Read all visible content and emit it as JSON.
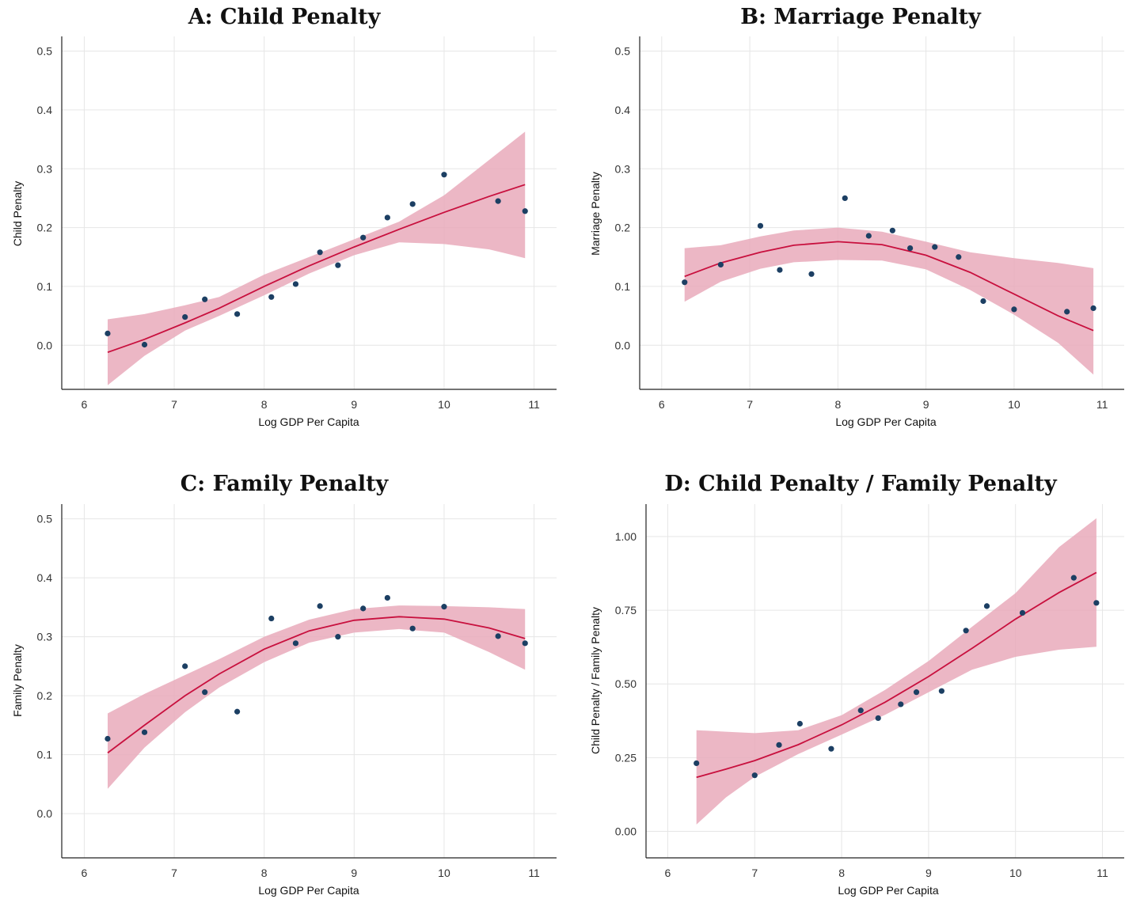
{
  "theme": {
    "ribbon_color": "#e8a7b8",
    "fit_color": "#c8103e",
    "point_color": "#1c3f63",
    "grid_color": "#e6e6e6"
  },
  "chart_data": [
    {
      "type": "scatter",
      "panel": "A",
      "title": "A: Child Penalty",
      "xlabel": "Log GDP Per Capita",
      "ylabel": "Child Penalty",
      "xlim": [
        5.75,
        11.25
      ],
      "ylim": [
        -0.075,
        0.525
      ],
      "xticks": [
        6,
        7,
        8,
        9,
        10,
        11
      ],
      "yticks": [
        0.0,
        0.1,
        0.2,
        0.3,
        0.4,
        0.5
      ],
      "ytick_labels": [
        "0.0",
        "0.1",
        "0.2",
        "0.3",
        "0.4",
        "0.5"
      ],
      "points": {
        "x": [
          6.26,
          6.67,
          7.12,
          7.34,
          7.7,
          8.08,
          8.35,
          8.62,
          8.82,
          9.1,
          9.37,
          9.65,
          10.0,
          10.6,
          10.9
        ],
        "y": [
          0.02,
          0.001,
          0.048,
          0.078,
          0.053,
          0.082,
          0.104,
          0.158,
          0.136,
          0.183,
          0.217,
          0.24,
          0.29,
          0.245,
          0.228
        ]
      },
      "fit": {
        "x": [
          6.26,
          6.67,
          7.12,
          7.5,
          8.0,
          8.5,
          9.0,
          9.5,
          10.0,
          10.5,
          10.9
        ],
        "y": [
          -0.012,
          0.01,
          0.038,
          0.063,
          0.1,
          0.135,
          0.167,
          0.197,
          0.226,
          0.253,
          0.273
        ],
        "lower": [
          -0.068,
          -0.018,
          0.025,
          0.05,
          0.085,
          0.122,
          0.153,
          0.175,
          0.172,
          0.163,
          0.148
        ],
        "upper": [
          0.044,
          0.053,
          0.068,
          0.082,
          0.12,
          0.15,
          0.18,
          0.21,
          0.255,
          0.315,
          0.363
        ]
      }
    },
    {
      "type": "scatter",
      "panel": "B",
      "title": "B: Marriage Penalty",
      "xlabel": "Log GDP Per Capita",
      "ylabel": "Marriage Penalty",
      "xlim": [
        5.75,
        11.25
      ],
      "ylim": [
        -0.075,
        0.525
      ],
      "xticks": [
        6,
        7,
        8,
        9,
        10,
        11
      ],
      "yticks": [
        0.0,
        0.1,
        0.2,
        0.3,
        0.4,
        0.5
      ],
      "ytick_labels": [
        "0.0",
        "0.1",
        "0.2",
        "0.3",
        "0.4",
        "0.5"
      ],
      "points": {
        "x": [
          6.26,
          6.67,
          7.12,
          7.34,
          7.7,
          8.08,
          8.35,
          8.62,
          8.82,
          9.1,
          9.37,
          9.65,
          10.0,
          10.6,
          10.9
        ],
        "y": [
          0.107,
          0.137,
          0.203,
          0.128,
          0.121,
          0.25,
          0.186,
          0.195,
          0.165,
          0.167,
          0.15,
          0.075,
          0.061,
          0.057,
          0.063
        ]
      },
      "fit": {
        "x": [
          6.26,
          6.67,
          7.12,
          7.5,
          8.0,
          8.5,
          9.0,
          9.5,
          10.0,
          10.5,
          10.9
        ],
        "y": [
          0.117,
          0.14,
          0.158,
          0.17,
          0.176,
          0.171,
          0.153,
          0.124,
          0.087,
          0.05,
          0.025
        ],
        "lower": [
          0.074,
          0.108,
          0.13,
          0.141,
          0.145,
          0.144,
          0.129,
          0.094,
          0.052,
          0.004,
          -0.05
        ],
        "upper": [
          0.165,
          0.17,
          0.185,
          0.195,
          0.2,
          0.193,
          0.176,
          0.158,
          0.148,
          0.14,
          0.131
        ]
      }
    },
    {
      "type": "scatter",
      "panel": "C",
      "title": "C: Family Penalty",
      "xlabel": "Log GDP Per Capita",
      "ylabel": "Family Penalty",
      "xlim": [
        5.75,
        11.25
      ],
      "ylim": [
        -0.075,
        0.525
      ],
      "xticks": [
        6,
        7,
        8,
        9,
        10,
        11
      ],
      "yticks": [
        0.0,
        0.1,
        0.2,
        0.3,
        0.4,
        0.5
      ],
      "ytick_labels": [
        "0.0",
        "0.1",
        "0.2",
        "0.3",
        "0.4",
        "0.5"
      ],
      "points": {
        "x": [
          6.26,
          6.67,
          7.12,
          7.34,
          7.7,
          8.08,
          8.35,
          8.62,
          8.82,
          9.1,
          9.37,
          9.65,
          10.0,
          10.6,
          10.9
        ],
        "y": [
          0.127,
          0.138,
          0.25,
          0.206,
          0.173,
          0.331,
          0.289,
          0.352,
          0.3,
          0.348,
          0.366,
          0.314,
          0.351,
          0.301,
          0.289
        ]
      },
      "fit": {
        "x": [
          6.26,
          6.67,
          7.12,
          7.5,
          8.0,
          8.5,
          9.0,
          9.5,
          10.0,
          10.5,
          10.9
        ],
        "y": [
          0.103,
          0.15,
          0.2,
          0.237,
          0.279,
          0.31,
          0.328,
          0.334,
          0.33,
          0.315,
          0.297
        ],
        "lower": [
          0.042,
          0.112,
          0.172,
          0.214,
          0.257,
          0.29,
          0.307,
          0.313,
          0.307,
          0.274,
          0.244
        ],
        "upper": [
          0.17,
          0.203,
          0.235,
          0.262,
          0.3,
          0.329,
          0.347,
          0.353,
          0.352,
          0.35,
          0.347
        ]
      }
    },
    {
      "type": "scatter",
      "panel": "D",
      "title": "D: Child Penalty / Family Penalty",
      "xlabel": "Log GDP Per Capita",
      "ylabel": "Child Penalty / Family Penalty",
      "xlim": [
        5.75,
        11.25
      ],
      "ylim": [
        -0.09,
        1.11
      ],
      "xticks": [
        6,
        7,
        8,
        9,
        10,
        11
      ],
      "yticks": [
        0.0,
        0.25,
        0.5,
        0.75,
        1.0
      ],
      "ytick_labels": [
        "0.00",
        "0.25",
        "0.50",
        "0.75",
        "1.00"
      ],
      "points": {
        "x": [
          6.33,
          7.0,
          7.28,
          7.52,
          7.88,
          8.22,
          8.42,
          8.68,
          8.86,
          9.15,
          9.43,
          9.67,
          10.08,
          10.67,
          10.93
        ],
        "y": [
          0.231,
          0.19,
          0.293,
          0.365,
          0.28,
          0.41,
          0.384,
          0.431,
          0.472,
          0.476,
          0.681,
          0.764,
          0.741,
          0.86,
          0.775
        ]
      },
      "fit": {
        "x": [
          6.33,
          6.67,
          7.0,
          7.5,
          8.0,
          8.5,
          9.0,
          9.5,
          10.0,
          10.5,
          10.93
        ],
        "y": [
          0.183,
          0.211,
          0.24,
          0.294,
          0.361,
          0.438,
          0.525,
          0.621,
          0.72,
          0.81,
          0.878
        ],
        "lower": [
          0.023,
          0.115,
          0.185,
          0.262,
          0.328,
          0.395,
          0.472,
          0.548,
          0.592,
          0.616,
          0.626
        ],
        "upper": [
          0.343,
          0.338,
          0.333,
          0.343,
          0.394,
          0.48,
          0.578,
          0.694,
          0.808,
          0.964,
          1.062
        ]
      }
    }
  ]
}
